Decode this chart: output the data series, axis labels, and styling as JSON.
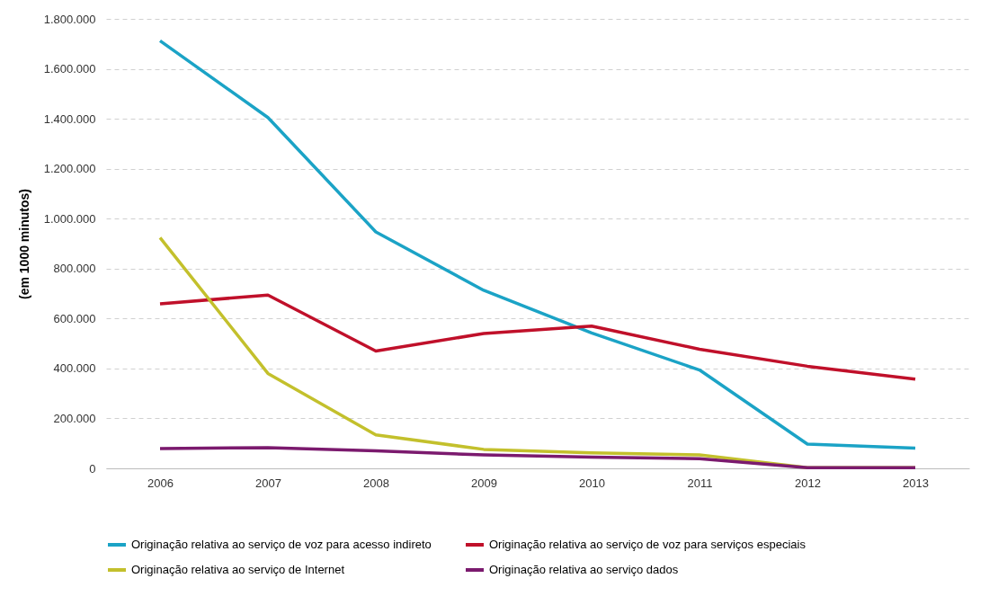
{
  "chart_data": {
    "type": "line",
    "ylabel": "(em 1000 minutos)",
    "categories": [
      "2006",
      "2007",
      "2008",
      "2009",
      "2010",
      "2011",
      "2012",
      "2013"
    ],
    "ylim": [
      0,
      1800000
    ],
    "yticks": [
      0,
      {
        "value": 200000,
        "label": "200.000"
      },
      {
        "value": 400000,
        "label": "400.000"
      },
      {
        "value": 600000,
        "label": "600.000"
      },
      {
        "value": 800000,
        "label": "800.000"
      },
      {
        "value": 1000000,
        "label": "1.000.000"
      },
      {
        "value": 1200000,
        "label": "1.200.000"
      },
      {
        "value": 1400000,
        "label": "1.400.000"
      },
      {
        "value": 1600000,
        "label": "1.600.000"
      },
      {
        "value": 1800000,
        "label": "1.800.000"
      }
    ],
    "grid": "y",
    "legend": "bottom",
    "marker": "none",
    "line_style": "solid",
    "series": [
      {
        "name": "Originação relativa ao serviço de voz para acesso indireto",
        "color": "#1ba3c6",
        "values": [
          1712000,
          1405000,
          947000,
          713000,
          542000,
          394000,
          97000,
          81000
        ]
      },
      {
        "name": "Originação relativa ao serviço de voz para serviços especiais",
        "color": "#c0102a",
        "values": [
          659000,
          694000,
          470000,
          540000,
          570000,
          477000,
          409000,
          357000
        ]
      },
      {
        "name": "Originação relativa ao serviço de Internet",
        "color": "#c3c02c",
        "values": [
          924000,
          380000,
          134000,
          76000,
          62000,
          54000,
          3000,
          3000
        ]
      },
      {
        "name": "Originação relativa ao serviço dados",
        "color": "#7b1a6e",
        "values": [
          79000,
          83000,
          70000,
          54000,
          45000,
          39000,
          3000,
          3000
        ]
      }
    ]
  }
}
